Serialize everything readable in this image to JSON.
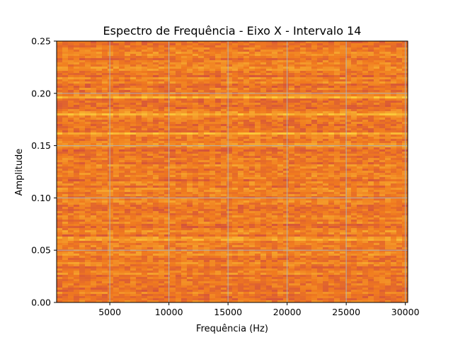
{
  "chart_data": {
    "type": "heatmap",
    "title": "Espectro de Frequência - Eixo X - Intervalo 14",
    "xlabel": "Frequência (Hz)",
    "ylabel": "Amplitude",
    "xlim": [
      500,
      30200
    ],
    "ylim": [
      0,
      0.25
    ],
    "x_ticks": [
      5000,
      10000,
      15000,
      20000,
      25000,
      30000
    ],
    "x_tick_labels": [
      "5000",
      "10000",
      "15000",
      "20000",
      "25000",
      "30000"
    ],
    "y_ticks": [
      0.0,
      0.05,
      0.1,
      0.15,
      0.2,
      0.25
    ],
    "y_tick_labels": [
      "0.00",
      "0.05",
      "0.10",
      "0.15",
      "0.20",
      "0.25"
    ],
    "grid": true,
    "colormap": "inferno-like (orange/yellow/red)",
    "bright_bands_amplitude": [
      0.061,
      0.15,
      0.161,
      0.18,
      0.196
    ],
    "colors": {
      "background": "#ffffff",
      "grid": "#b0b0b0",
      "low": "#c2384d",
      "mid": "#f07a1f",
      "high": "#fbc93a"
    }
  }
}
